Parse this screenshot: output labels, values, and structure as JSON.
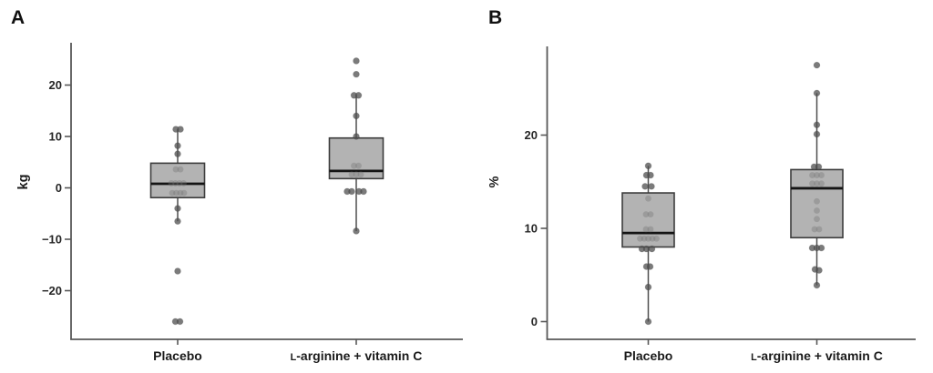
{
  "chart_data": [
    {
      "type": "boxplot",
      "panel_label": "A",
      "ylabel": "kg",
      "ylim": [
        -29.5,
        28.2
      ],
      "yticks": [
        {
          "v": 20,
          "label": "20"
        },
        {
          "v": 10,
          "label": "10"
        },
        {
          "v": 0,
          "label": "0"
        },
        {
          "v": -10,
          "label": "−10"
        },
        {
          "v": -20,
          "label": "−20"
        }
      ],
      "grid": false,
      "legend": false,
      "categories": [
        {
          "parts": [
            {
              "t": "Placebo"
            }
          ]
        },
        {
          "parts": [
            {
              "t": "L",
              "small": true
            },
            {
              "t": "-arginine + vitamin C"
            }
          ]
        }
      ],
      "series": [
        {
          "name": "Placebo",
          "box": {
            "q1": -1.9,
            "median": 0.8,
            "q3": 4.8,
            "whisker_low": -6.5,
            "whisker_high": 11.4
          },
          "points": [
            {
              "v": 11.4,
              "dx": -2,
              "faint": false
            },
            {
              "v": 11.4,
              "dx": 3,
              "faint": false
            },
            {
              "v": 8.2,
              "dx": 0,
              "faint": false
            },
            {
              "v": 6.6,
              "dx": 0,
              "faint": false
            },
            {
              "v": 3.6,
              "dx": -2,
              "faint": true
            },
            {
              "v": 3.6,
              "dx": 3,
              "faint": true
            },
            {
              "v": 0.9,
              "dx": -7,
              "faint": true
            },
            {
              "v": 0.9,
              "dx": -2.5,
              "faint": true
            },
            {
              "v": 0.9,
              "dx": 2,
              "faint": true
            },
            {
              "v": 0.9,
              "dx": 6.5,
              "faint": true
            },
            {
              "v": -1.0,
              "dx": -6,
              "faint": true
            },
            {
              "v": -1.0,
              "dx": -1.5,
              "faint": true
            },
            {
              "v": -1.0,
              "dx": 3,
              "faint": true
            },
            {
              "v": -1.0,
              "dx": 7,
              "faint": true
            },
            {
              "v": -4.0,
              "dx": 0,
              "faint": false
            },
            {
              "v": -6.5,
              "dx": 0,
              "faint": false
            },
            {
              "v": -16.2,
              "dx": 0,
              "faint": false
            },
            {
              "v": -26.0,
              "dx": -2.5,
              "faint": false
            },
            {
              "v": -26.0,
              "dx": 2.5,
              "faint": false
            }
          ]
        },
        {
          "name": "L-arginine + vitamin C",
          "box": {
            "q1": 1.8,
            "median": 3.3,
            "q3": 9.7,
            "whisker_low": -8.4,
            "whisker_high": 18.0
          },
          "points": [
            {
              "v": 24.7,
              "dx": 0,
              "faint": false
            },
            {
              "v": 22.1,
              "dx": 0,
              "faint": false
            },
            {
              "v": 18.0,
              "dx": -2.5,
              "faint": false
            },
            {
              "v": 18.0,
              "dx": 2.5,
              "faint": false
            },
            {
              "v": 14.0,
              "dx": 0,
              "faint": false
            },
            {
              "v": 10.0,
              "dx": 0,
              "faint": false
            },
            {
              "v": 4.3,
              "dx": -2.5,
              "faint": true
            },
            {
              "v": 4.3,
              "dx": 2.5,
              "faint": true
            },
            {
              "v": 2.6,
              "dx": -5,
              "faint": true
            },
            {
              "v": 2.6,
              "dx": 0,
              "faint": true
            },
            {
              "v": 2.6,
              "dx": 5,
              "faint": true
            },
            {
              "v": -0.7,
              "dx": -10,
              "faint": false
            },
            {
              "v": -0.7,
              "dx": -5,
              "faint": false
            },
            {
              "v": -0.7,
              "dx": 3,
              "faint": false
            },
            {
              "v": -0.7,
              "dx": 8,
              "faint": false
            },
            {
              "v": -8.4,
              "dx": 0,
              "faint": false
            }
          ]
        }
      ]
    },
    {
      "type": "boxplot",
      "panel_label": "B",
      "ylabel": "%",
      "ylim": [
        -1.9,
        29.5
      ],
      "yticks": [
        {
          "v": 20,
          "label": "20"
        },
        {
          "v": 10,
          "label": "10"
        },
        {
          "v": 0,
          "label": "0"
        }
      ],
      "grid": false,
      "legend": false,
      "categories": [
        {
          "parts": [
            {
              "t": "Placebo"
            }
          ]
        },
        {
          "parts": [
            {
              "t": "L",
              "small": true
            },
            {
              "t": "-arginine + vitamin C"
            }
          ]
        }
      ],
      "series": [
        {
          "name": "Placebo",
          "box": {
            "q1": 8.0,
            "median": 9.5,
            "q3": 13.8,
            "whisker_low": 0.0,
            "whisker_high": 16.7
          },
          "points": [
            {
              "v": 16.7,
              "dx": 0,
              "faint": false
            },
            {
              "v": 15.7,
              "dx": -2,
              "faint": false
            },
            {
              "v": 15.7,
              "dx": 2.5,
              "faint": false
            },
            {
              "v": 14.5,
              "dx": -3.5,
              "faint": false
            },
            {
              "v": 14.5,
              "dx": 3.5,
              "faint": false
            },
            {
              "v": 13.2,
              "dx": 0,
              "faint": true
            },
            {
              "v": 11.5,
              "dx": -2.5,
              "faint": true
            },
            {
              "v": 11.5,
              "dx": 2.5,
              "faint": true
            },
            {
              "v": 9.9,
              "dx": -2.5,
              "faint": true
            },
            {
              "v": 9.9,
              "dx": 2.5,
              "faint": true
            },
            {
              "v": 8.9,
              "dx": -9,
              "faint": true
            },
            {
              "v": 8.9,
              "dx": -4.5,
              "faint": true
            },
            {
              "v": 8.9,
              "dx": 0,
              "faint": true
            },
            {
              "v": 8.9,
              "dx": 4.5,
              "faint": true
            },
            {
              "v": 8.9,
              "dx": 9,
              "faint": true
            },
            {
              "v": 7.8,
              "dx": -7,
              "faint": false
            },
            {
              "v": 7.8,
              "dx": -2,
              "faint": false
            },
            {
              "v": 7.8,
              "dx": 4,
              "faint": false
            },
            {
              "v": 5.9,
              "dx": -2,
              "faint": false
            },
            {
              "v": 5.9,
              "dx": 2,
              "faint": false
            },
            {
              "v": 3.7,
              "dx": 0,
              "faint": false
            },
            {
              "v": 0.0,
              "dx": 0,
              "faint": false
            }
          ]
        },
        {
          "name": "L-arginine + vitamin C",
          "box": {
            "q1": 9.0,
            "median": 14.3,
            "q3": 16.3,
            "whisker_low": 3.9,
            "whisker_high": 24.5
          },
          "points": [
            {
              "v": 27.5,
              "dx": 0,
              "faint": false
            },
            {
              "v": 24.5,
              "dx": 0,
              "faint": false
            },
            {
              "v": 21.1,
              "dx": 0,
              "faint": false
            },
            {
              "v": 20.1,
              "dx": 0,
              "faint": false
            },
            {
              "v": 16.6,
              "dx": -3,
              "faint": false
            },
            {
              "v": 16.6,
              "dx": 2,
              "faint": false
            },
            {
              "v": 15.7,
              "dx": -5,
              "faint": true
            },
            {
              "v": 15.7,
              "dx": 0,
              "faint": true
            },
            {
              "v": 15.7,
              "dx": 5,
              "faint": true
            },
            {
              "v": 14.8,
              "dx": -5,
              "faint": true
            },
            {
              "v": 14.8,
              "dx": 0,
              "faint": true
            },
            {
              "v": 14.8,
              "dx": 5,
              "faint": true
            },
            {
              "v": 12.9,
              "dx": 0,
              "faint": true
            },
            {
              "v": 11.9,
              "dx": 0,
              "faint": true
            },
            {
              "v": 11.0,
              "dx": 0,
              "faint": true
            },
            {
              "v": 9.9,
              "dx": -2.5,
              "faint": true
            },
            {
              "v": 9.9,
              "dx": 2.5,
              "faint": true
            },
            {
              "v": 7.9,
              "dx": -5,
              "faint": false
            },
            {
              "v": 7.9,
              "dx": 0,
              "faint": false
            },
            {
              "v": 7.9,
              "dx": 5,
              "faint": false
            },
            {
              "v": 5.6,
              "dx": -2,
              "faint": false
            },
            {
              "v": 5.5,
              "dx": 2.5,
              "faint": false
            },
            {
              "v": 3.9,
              "dx": 0,
              "faint": false
            }
          ]
        }
      ],
      "colors": {
        "box_fill": "#b3b3b3",
        "box_stroke": "#3c3c3c",
        "median": "#141414",
        "point": "#4f4f4f",
        "axis": "#585858"
      }
    }
  ]
}
